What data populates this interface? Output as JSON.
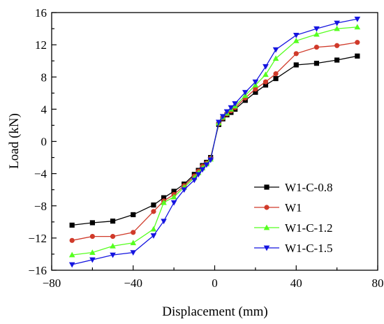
{
  "chart_data": {
    "type": "line",
    "title": "",
    "xlabel": "Displacement (mm)",
    "ylabel": "Load (kN)",
    "xlim": [
      -80,
      80
    ],
    "ylim": [
      -16,
      16
    ],
    "xticks": [
      -80,
      -40,
      0,
      40,
      80
    ],
    "yticks": [
      -16,
      -12,
      -8,
      -4,
      0,
      4,
      8,
      12,
      16
    ],
    "grid": false,
    "legend_position": "bottom-right",
    "series": [
      {
        "name": "W1-C-0.8",
        "color": "#000000",
        "marker": "square",
        "x": [
          -70,
          -60,
          -50,
          -40,
          -30,
          -25,
          -20,
          -15,
          -10,
          -8,
          -6,
          -4,
          -2,
          2,
          4,
          6,
          8,
          10,
          15,
          20,
          25,
          30,
          40,
          50,
          60,
          70
        ],
        "y": [
          -10.4,
          -10.1,
          -9.9,
          -9.1,
          -7.9,
          -7.0,
          -6.2,
          -5.3,
          -4.1,
          -3.6,
          -3.0,
          -2.6,
          -2.0,
          2.1,
          2.8,
          3.3,
          3.6,
          4.0,
          5.1,
          6.1,
          7.0,
          7.8,
          9.5,
          9.7,
          10.1,
          10.6
        ]
      },
      {
        "name": "W1",
        "color": "#d03a2a",
        "marker": "circle",
        "x": [
          -70,
          -60,
          -50,
          -40,
          -30,
          -25,
          -20,
          -15,
          -10,
          -8,
          -6,
          -4,
          -2,
          2,
          4,
          6,
          8,
          10,
          15,
          20,
          25,
          30,
          40,
          50,
          60,
          70
        ],
        "y": [
          -12.3,
          -11.8,
          -11.8,
          -11.3,
          -8.7,
          -7.4,
          -6.6,
          -5.5,
          -4.3,
          -3.7,
          -3.1,
          -2.7,
          -2.1,
          2.2,
          2.9,
          3.4,
          3.8,
          4.2,
          5.4,
          6.5,
          7.4,
          8.4,
          10.9,
          11.7,
          11.9,
          12.3
        ]
      },
      {
        "name": "W1-C-1.2",
        "color": "#55ff1f",
        "marker": "triangle-up",
        "x": [
          -70,
          -60,
          -50,
          -40,
          -30,
          -25,
          -20,
          -15,
          -10,
          -8,
          -6,
          -4,
          -2,
          2,
          4,
          6,
          8,
          10,
          15,
          20,
          25,
          30,
          40,
          50,
          60,
          70
        ],
        "y": [
          -14.1,
          -13.8,
          -13.0,
          -12.6,
          -10.9,
          -7.6,
          -6.9,
          -5.7,
          -4.5,
          -3.9,
          -3.3,
          -2.8,
          -2.2,
          2.3,
          3.0,
          3.5,
          4.0,
          4.4,
          5.7,
          7.0,
          8.3,
          10.3,
          12.5,
          13.3,
          14.0,
          14.2
        ]
      },
      {
        "name": "W1-C-1.5",
        "color": "#1515e0",
        "marker": "triangle-down",
        "x": [
          -70,
          -60,
          -50,
          -40,
          -30,
          -25,
          -20,
          -15,
          -10,
          -8,
          -6,
          -4,
          -2,
          2,
          4,
          6,
          8,
          10,
          15,
          20,
          25,
          30,
          40,
          50,
          60,
          70
        ],
        "y": [
          -15.3,
          -14.7,
          -14.1,
          -13.8,
          -11.7,
          -9.9,
          -7.6,
          -6.0,
          -4.8,
          -4.1,
          -3.5,
          -2.9,
          -2.3,
          2.4,
          3.1,
          3.7,
          4.2,
          4.7,
          6.1,
          7.4,
          9.3,
          11.4,
          13.2,
          14.0,
          14.7,
          15.2
        ]
      }
    ]
  }
}
